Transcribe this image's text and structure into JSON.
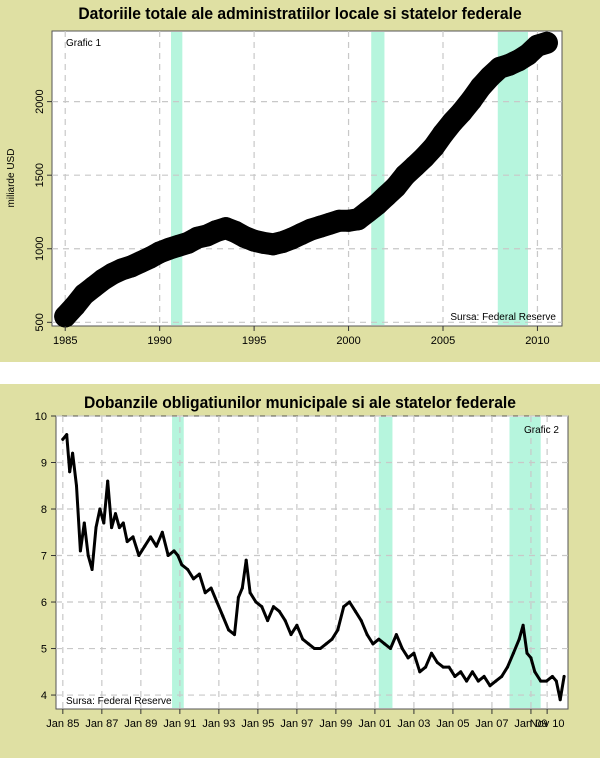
{
  "chart_data": [
    {
      "type": "line",
      "title": "Datoriile totale ale administratiilor locale si statelor federale",
      "label": "Grafic 1",
      "source": "Sursa: Federal Reserve",
      "ylabel": "miliarde USD",
      "xlabel": "",
      "xlim": [
        1984.3,
        2011.3
      ],
      "ylim": [
        475,
        2480
      ],
      "xticks": [
        1985,
        1990,
        1995,
        2000,
        2005,
        2010
      ],
      "xtick_labels": [
        "1985",
        "1990",
        "1995",
        "2000",
        "2005",
        "2010"
      ],
      "yticks": [
        500,
        1000,
        1500,
        2000
      ],
      "ytick_labels": [
        "500",
        "1000",
        "1500",
        "2000"
      ],
      "recessions": [
        [
          1990.6,
          1991.2
        ],
        [
          2001.2,
          2001.9
        ],
        [
          2007.9,
          2009.5
        ]
      ],
      "grid": true,
      "series": [
        {
          "x": [
            1985.0,
            1985.5,
            1986.0,
            1986.5,
            1987.0,
            1987.5,
            1988.0,
            1988.5,
            1989.0,
            1989.5,
            1990.0,
            1990.5,
            1991.0,
            1991.5,
            1992.0,
            1992.5,
            1993.0,
            1993.5,
            1994.0,
            1994.5,
            1995.0,
            1995.5,
            1996.0,
            1996.5,
            1997.0,
            1997.5,
            1998.0,
            1998.5,
            1999.0,
            1999.5,
            2000.0,
            2000.5,
            2001.0,
            2001.5,
            2002.0,
            2002.5,
            2003.0,
            2003.5,
            2004.0,
            2004.5,
            2005.0,
            2005.5,
            2006.0,
            2006.5,
            2007.0,
            2007.5,
            2008.0,
            2008.5,
            2009.0,
            2009.5,
            2010.0,
            2010.5
          ],
          "y": [
            540,
            610,
            690,
            740,
            790,
            830,
            860,
            880,
            910,
            940,
            975,
            1000,
            1020,
            1040,
            1075,
            1090,
            1120,
            1140,
            1115,
            1080,
            1055,
            1040,
            1030,
            1045,
            1070,
            1100,
            1130,
            1150,
            1170,
            1190,
            1190,
            1200,
            1250,
            1300,
            1360,
            1420,
            1500,
            1560,
            1620,
            1690,
            1780,
            1860,
            1930,
            2010,
            2100,
            2170,
            2230,
            2250,
            2280,
            2320,
            2380,
            2400
          ]
        }
      ]
    },
    {
      "type": "line",
      "title": "Dobanzile obligatiunilor municipale si ale statelor federale",
      "label": "Grafic 2",
      "source": "Sursa: Federal Reserve",
      "xlabel": "",
      "ylabel": "",
      "xlim": [
        1984.65,
        2010.9
      ],
      "ylim": [
        3.7,
        10.0
      ],
      "xticks": [
        1985,
        1987,
        1989,
        1991,
        1993,
        1995,
        1997,
        1999,
        2001,
        2003,
        2005,
        2007,
        2009,
        2009.83
      ],
      "xtick_labels": [
        "Jan 85",
        "Jan 87",
        "Jan 89",
        "Jan 91",
        "Jan 93",
        "Jan 95",
        "Jan 97",
        "Jan 99",
        "Jan 01",
        "Jan 03",
        "Jan 05",
        "Jan 07",
        "Jan 09",
        "Nov 10"
      ],
      "yticks": [
        4,
        5,
        6,
        7,
        8,
        9,
        10
      ],
      "ytick_labels": [
        "4",
        "5",
        "6",
        "7",
        "8",
        "9",
        "10"
      ],
      "recessions": [
        [
          1990.6,
          1991.2
        ],
        [
          2001.2,
          2001.9
        ],
        [
          2007.9,
          2009.5
        ]
      ],
      "grid": true,
      "series": [
        {
          "x": [
            1985.0,
            1985.2,
            1985.35,
            1985.5,
            1985.7,
            1985.9,
            1986.1,
            1986.3,
            1986.5,
            1986.7,
            1986.9,
            1987.1,
            1987.3,
            1987.5,
            1987.7,
            1987.9,
            1988.1,
            1988.3,
            1988.6,
            1988.9,
            1989.2,
            1989.5,
            1989.8,
            1990.1,
            1990.4,
            1990.7,
            1990.9,
            1991.1,
            1991.4,
            1991.7,
            1992.0,
            1992.3,
            1992.6,
            1992.9,
            1993.2,
            1993.5,
            1993.8,
            1994.0,
            1994.2,
            1994.4,
            1994.6,
            1994.9,
            1995.2,
            1995.5,
            1995.8,
            1996.1,
            1996.4,
            1996.7,
            1997.0,
            1997.3,
            1997.6,
            1997.9,
            1998.2,
            1998.5,
            1998.8,
            1999.1,
            1999.4,
            1999.7,
            2000.0,
            2000.3,
            2000.6,
            2000.9,
            2001.2,
            2001.5,
            2001.8,
            2002.1,
            2002.4,
            2002.7,
            2003.0,
            2003.3,
            2003.6,
            2003.9,
            2004.2,
            2004.5,
            2004.8,
            2005.1,
            2005.4,
            2005.7,
            2006.0,
            2006.3,
            2006.6,
            2006.9,
            2007.2,
            2007.5,
            2007.8,
            2008.1,
            2008.4,
            2008.6,
            2008.8,
            2009.0,
            2009.2,
            2009.5,
            2009.8,
            2010.1,
            2010.3,
            2010.5,
            2010.7
          ],
          "y": [
            9.5,
            9.6,
            8.8,
            9.2,
            8.5,
            7.1,
            7.7,
            7.0,
            6.7,
            7.6,
            8.0,
            7.7,
            8.6,
            7.6,
            7.9,
            7.6,
            7.7,
            7.3,
            7.4,
            7.0,
            7.2,
            7.4,
            7.2,
            7.5,
            7.0,
            7.1,
            7.0,
            6.8,
            6.7,
            6.5,
            6.6,
            6.2,
            6.3,
            6.0,
            5.7,
            5.4,
            5.3,
            6.1,
            6.3,
            6.9,
            6.2,
            6.0,
            5.9,
            5.6,
            5.9,
            5.8,
            5.6,
            5.3,
            5.5,
            5.2,
            5.1,
            5.0,
            5.0,
            5.1,
            5.2,
            5.4,
            5.9,
            6.0,
            5.8,
            5.6,
            5.3,
            5.1,
            5.2,
            5.1,
            5.0,
            5.3,
            5.0,
            4.8,
            4.9,
            4.5,
            4.6,
            4.9,
            4.7,
            4.6,
            4.6,
            4.4,
            4.5,
            4.3,
            4.5,
            4.3,
            4.4,
            4.2,
            4.3,
            4.4,
            4.6,
            4.9,
            5.2,
            5.5,
            4.9,
            4.8,
            4.5,
            4.3,
            4.3,
            4.4,
            4.3,
            3.9,
            4.4
          ]
        }
      ]
    }
  ]
}
